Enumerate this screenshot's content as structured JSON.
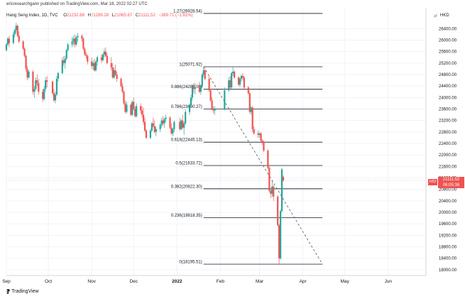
{
  "header": {
    "publisher_line": "ericresearchgann published on TradingView.com, Mar 18, 2022 02:27 UTC",
    "symbol": "Hang Seng Index, 1D, TVC",
    "ohlc": [
      {
        "k": "O",
        "v": "21232.88"
      },
      {
        "k": "H",
        "v": "21289.28"
      },
      {
        "k": "L",
        "v": "21065.87"
      },
      {
        "k": "C",
        "v": "21111.52"
      }
    ],
    "change": "−389.71 (−1.81%)",
    "currency": "HKD",
    "currency_icon": "⇄"
  },
  "badge": {
    "symbol_tag": "HSI",
    "price": "21111.52",
    "countdown": "06:05:36"
  },
  "footer": {
    "logo_mark": "⁋",
    "brand": "TradingView"
  },
  "colors": {
    "up": "#26a69a",
    "down": "#ef5350",
    "fib_line": "#131722",
    "grid": "#f0f3fa",
    "trendline": "#555555"
  },
  "chart_data": {
    "type": "candlestick",
    "title": "Hang Seng Index, 1D, TVC",
    "ylim": [
      17800,
      27100
    ],
    "y_ticks": [
      18000,
      18400,
      18800,
      19200,
      19600,
      20000,
      20400,
      20800,
      21200,
      21600,
      22000,
      22400,
      22800,
      23200,
      23600,
      24000,
      24400,
      24800,
      25200,
      25600,
      26000,
      26400
    ],
    "x_ticks": [
      "Sep",
      "Oct",
      "Nov",
      "Dec",
      "2022",
      "Feb",
      "Mar",
      "Apr",
      "May",
      "Jun"
    ],
    "x_tick_dates": [
      "2021-09-01",
      "2021-10-01",
      "2021-11-01",
      "2021-12-01",
      "2022-01-01",
      "2022-02-01",
      "2022-03-01",
      "2022-04-01",
      "2022-05-01",
      "2022-06-01"
    ],
    "fib_levels": [
      {
        "label": "1.27(26928.54)",
        "value": 26928.54
      },
      {
        "label": "1(25071.92)",
        "value": 25071.92
      },
      {
        "label": "0.886(24288.08)",
        "value": 24288.08
      },
      {
        "label": "0.786(23600.27)",
        "value": 23600.27
      },
      {
        "label": "0.618(22445.13)",
        "value": 22445.13
      },
      {
        "label": "0.5(21633.72)",
        "value": 21633.72
      },
      {
        "label": "0.382(20822.30)",
        "value": 20822.3
      },
      {
        "label": "0.236(19818.35)",
        "value": 19818.35
      },
      {
        "label": "0(18195.51)",
        "value": 18195.51
      }
    ],
    "fib_start_date": "2022-01-20",
    "fib_end_date": "2022-04-15",
    "trendline": {
      "start": {
        "date": "2022-01-20",
        "value": 25071.92
      },
      "end": {
        "date": "2022-04-15",
        "value": 18195.51
      }
    },
    "last_price": 21111.52,
    "candles": [
      {
        "d": "2021-09-01",
        "o": 25650,
        "h": 25900,
        "l": 25600,
        "c": 25850
      },
      {
        "d": "2021-09-02",
        "o": 25850,
        "h": 26100,
        "l": 25800,
        "c": 26050
      },
      {
        "d": "2021-09-03",
        "o": 26050,
        "h": 26150,
        "l": 25750,
        "c": 25900
      },
      {
        "d": "2021-09-06",
        "o": 25900,
        "h": 26300,
        "l": 25850,
        "c": 26200
      },
      {
        "d": "2021-09-07",
        "o": 26200,
        "h": 26400,
        "l": 26100,
        "c": 26350
      },
      {
        "d": "2021-09-08",
        "o": 26350,
        "h": 26600,
        "l": 26250,
        "c": 26500
      },
      {
        "d": "2021-09-09",
        "o": 26500,
        "h": 26550,
        "l": 26100,
        "c": 26150
      },
      {
        "d": "2021-09-10",
        "o": 26150,
        "h": 26300,
        "l": 25900,
        "c": 25950
      },
      {
        "d": "2021-09-13",
        "o": 25950,
        "h": 26000,
        "l": 25650,
        "c": 25700
      },
      {
        "d": "2021-09-14",
        "o": 25700,
        "h": 25750,
        "l": 25400,
        "c": 25450
      },
      {
        "d": "2021-09-15",
        "o": 25450,
        "h": 25500,
        "l": 24900,
        "c": 25000
      },
      {
        "d": "2021-09-16",
        "o": 25000,
        "h": 25100,
        "l": 24600,
        "c": 24700
      },
      {
        "d": "2021-09-17",
        "o": 24700,
        "h": 24950,
        "l": 24650,
        "c": 24900
      },
      {
        "d": "2021-09-20",
        "o": 24900,
        "h": 24950,
        "l": 24100,
        "c": 24200
      },
      {
        "d": "2021-09-21",
        "o": 24200,
        "h": 24400,
        "l": 24000,
        "c": 24300
      },
      {
        "d": "2021-09-22",
        "o": 24300,
        "h": 24700,
        "l": 24250,
        "c": 24600
      },
      {
        "d": "2021-09-23",
        "o": 24600,
        "h": 24800,
        "l": 24400,
        "c": 24500
      },
      {
        "d": "2021-09-24",
        "o": 24500,
        "h": 24650,
        "l": 24100,
        "c": 24200
      },
      {
        "d": "2021-09-27",
        "o": 24200,
        "h": 24300,
        "l": 23850,
        "c": 23950
      },
      {
        "d": "2021-09-28",
        "o": 23950,
        "h": 24400,
        "l": 23900,
        "c": 24300
      },
      {
        "d": "2021-09-29",
        "o": 24300,
        "h": 24700,
        "l": 24200,
        "c": 24600
      },
      {
        "d": "2021-09-30",
        "o": 24600,
        "h": 24750,
        "l": 24350,
        "c": 24550
      },
      {
        "d": "2021-10-04",
        "o": 24550,
        "h": 24600,
        "l": 24100,
        "c": 24150
      },
      {
        "d": "2021-10-05",
        "o": 24150,
        "h": 24300,
        "l": 23850,
        "c": 23900
      },
      {
        "d": "2021-10-06",
        "o": 23900,
        "h": 24200,
        "l": 23800,
        "c": 24100
      },
      {
        "d": "2021-10-07",
        "o": 24100,
        "h": 24750,
        "l": 24050,
        "c": 24650
      },
      {
        "d": "2021-10-08",
        "o": 24650,
        "h": 24900,
        "l": 24550,
        "c": 24850
      },
      {
        "d": "2021-10-11",
        "o": 24850,
        "h": 25400,
        "l": 24800,
        "c": 25300
      },
      {
        "d": "2021-10-12",
        "o": 25300,
        "h": 25450,
        "l": 25100,
        "c": 25200
      },
      {
        "d": "2021-10-13",
        "o": 25200,
        "h": 25450,
        "l": 25000,
        "c": 25350
      },
      {
        "d": "2021-10-14",
        "o": 25350,
        "h": 25700,
        "l": 25300,
        "c": 25650
      },
      {
        "d": "2021-10-15",
        "o": 25650,
        "h": 25900,
        "l": 25600,
        "c": 25850
      },
      {
        "d": "2021-10-18",
        "o": 25850,
        "h": 26100,
        "l": 25750,
        "c": 25950
      },
      {
        "d": "2021-10-19",
        "o": 25950,
        "h": 26150,
        "l": 25800,
        "c": 26050
      },
      {
        "d": "2021-10-20",
        "o": 26050,
        "h": 26200,
        "l": 25750,
        "c": 25850
      },
      {
        "d": "2021-10-21",
        "o": 25850,
        "h": 26150,
        "l": 25800,
        "c": 26100
      },
      {
        "d": "2021-10-22",
        "o": 26100,
        "h": 26250,
        "l": 25950,
        "c": 26150
      },
      {
        "d": "2021-10-25",
        "o": 26150,
        "h": 26200,
        "l": 25950,
        "c": 26050
      },
      {
        "d": "2021-10-26",
        "o": 26050,
        "h": 26100,
        "l": 25650,
        "c": 25700
      },
      {
        "d": "2021-10-27",
        "o": 25700,
        "h": 25750,
        "l": 25450,
        "c": 25500
      },
      {
        "d": "2021-10-28",
        "o": 25500,
        "h": 25600,
        "l": 25350,
        "c": 25450
      },
      {
        "d": "2021-10-29",
        "o": 25450,
        "h": 25500,
        "l": 25150,
        "c": 25250
      },
      {
        "d": "2021-11-01",
        "o": 25250,
        "h": 25400,
        "l": 25000,
        "c": 25100
      },
      {
        "d": "2021-11-02",
        "o": 25100,
        "h": 25300,
        "l": 24950,
        "c": 25200
      },
      {
        "d": "2021-11-03",
        "o": 25200,
        "h": 25350,
        "l": 24900,
        "c": 24950
      },
      {
        "d": "2021-11-04",
        "o": 24950,
        "h": 25300,
        "l": 24900,
        "c": 25250
      },
      {
        "d": "2021-11-05",
        "o": 25250,
        "h": 25450,
        "l": 25100,
        "c": 25400
      },
      {
        "d": "2021-11-08",
        "o": 25400,
        "h": 25500,
        "l": 25200,
        "c": 25300
      },
      {
        "d": "2021-11-09",
        "o": 25300,
        "h": 25550,
        "l": 25250,
        "c": 25500
      },
      {
        "d": "2021-11-10",
        "o": 25500,
        "h": 25700,
        "l": 25400,
        "c": 25600
      },
      {
        "d": "2021-11-11",
        "o": 25600,
        "h": 25750,
        "l": 25400,
        "c": 25450
      },
      {
        "d": "2021-11-12",
        "o": 25450,
        "h": 25550,
        "l": 25150,
        "c": 25200
      },
      {
        "d": "2021-11-15",
        "o": 25200,
        "h": 25400,
        "l": 24950,
        "c": 25050
      },
      {
        "d": "2021-11-16",
        "o": 25050,
        "h": 25200,
        "l": 24650,
        "c": 24700
      },
      {
        "d": "2021-11-17",
        "o": 24700,
        "h": 25050,
        "l": 24650,
        "c": 24950
      },
      {
        "d": "2021-11-18",
        "o": 24950,
        "h": 25150,
        "l": 24750,
        "c": 24800
      },
      {
        "d": "2021-11-19",
        "o": 24800,
        "h": 24900,
        "l": 24550,
        "c": 24650
      },
      {
        "d": "2021-11-22",
        "o": 24650,
        "h": 24700,
        "l": 24350,
        "c": 24400
      },
      {
        "d": "2021-11-23",
        "o": 24400,
        "h": 24500,
        "l": 24150,
        "c": 24200
      },
      {
        "d": "2021-11-24",
        "o": 24200,
        "h": 24250,
        "l": 23750,
        "c": 23800
      },
      {
        "d": "2021-11-25",
        "o": 23800,
        "h": 23900,
        "l": 23450,
        "c": 23500
      },
      {
        "d": "2021-11-26",
        "o": 23500,
        "h": 23850,
        "l": 23450,
        "c": 23750
      },
      {
        "d": "2021-11-29",
        "o": 23750,
        "h": 23800,
        "l": 23350,
        "c": 23400
      },
      {
        "d": "2021-11-30",
        "o": 23400,
        "h": 23900,
        "l": 23350,
        "c": 23850
      },
      {
        "d": "2021-12-01",
        "o": 23850,
        "h": 24000,
        "l": 23550,
        "c": 23600
      },
      {
        "d": "2021-12-02",
        "o": 23600,
        "h": 23700,
        "l": 23300,
        "c": 23350
      },
      {
        "d": "2021-12-03",
        "o": 23350,
        "h": 23800,
        "l": 23300,
        "c": 23700
      },
      {
        "d": "2021-12-06",
        "o": 23700,
        "h": 23800,
        "l": 23450,
        "c": 23550
      },
      {
        "d": "2021-12-07",
        "o": 23550,
        "h": 23700,
        "l": 23300,
        "c": 23400
      },
      {
        "d": "2021-12-08",
        "o": 23400,
        "h": 23650,
        "l": 23050,
        "c": 23150
      },
      {
        "d": "2021-12-09",
        "o": 23150,
        "h": 23300,
        "l": 22800,
        "c": 22850
      },
      {
        "d": "2021-12-10",
        "o": 22850,
        "h": 22900,
        "l": 22550,
        "c": 22600
      },
      {
        "d": "2021-12-13",
        "o": 22600,
        "h": 22900,
        "l": 22550,
        "c": 22850
      },
      {
        "d": "2021-12-14",
        "o": 22850,
        "h": 23150,
        "l": 22800,
        "c": 23100
      },
      {
        "d": "2021-12-15",
        "o": 23100,
        "h": 23300,
        "l": 22950,
        "c": 23000
      },
      {
        "d": "2021-12-16",
        "o": 23000,
        "h": 23200,
        "l": 22750,
        "c": 22800
      },
      {
        "d": "2021-12-17",
        "o": 22800,
        "h": 23000,
        "l": 22650,
        "c": 22900
      },
      {
        "d": "2021-12-20",
        "o": 22900,
        "h": 23100,
        "l": 22800,
        "c": 23050
      },
      {
        "d": "2021-12-21",
        "o": 23050,
        "h": 23300,
        "l": 22950,
        "c": 23200
      },
      {
        "d": "2021-12-22",
        "o": 23200,
        "h": 23350,
        "l": 23000,
        "c": 23100
      },
      {
        "d": "2021-12-23",
        "o": 23100,
        "h": 23300,
        "l": 22950,
        "c": 23250
      },
      {
        "d": "2021-12-24",
        "o": 23250,
        "h": 23400,
        "l": 23150,
        "c": 23300
      },
      {
        "d": "2021-12-27",
        "o": 23300,
        "h": 23350,
        "l": 22900,
        "c": 22950
      },
      {
        "d": "2021-12-28",
        "o": 22950,
        "h": 23100,
        "l": 22700,
        "c": 22750
      },
      {
        "d": "2021-12-29",
        "o": 22750,
        "h": 22950,
        "l": 22650,
        "c": 22900
      },
      {
        "d": "2021-12-30",
        "o": 22900,
        "h": 23200,
        "l": 22800,
        "c": 23150
      },
      {
        "d": "2022-01-03",
        "o": 23150,
        "h": 23300,
        "l": 22850,
        "c": 22900
      },
      {
        "d": "2022-01-04",
        "o": 22900,
        "h": 23250,
        "l": 22850,
        "c": 23200
      },
      {
        "d": "2022-01-05",
        "o": 23200,
        "h": 23400,
        "l": 22900,
        "c": 22950
      },
      {
        "d": "2022-01-06",
        "o": 22950,
        "h": 23150,
        "l": 22700,
        "c": 23100
      },
      {
        "d": "2022-01-07",
        "o": 23100,
        "h": 23600,
        "l": 23050,
        "c": 23500
      },
      {
        "d": "2022-01-10",
        "o": 23500,
        "h": 23800,
        "l": 23400,
        "c": 23750
      },
      {
        "d": "2022-01-11",
        "o": 23750,
        "h": 24100,
        "l": 23650,
        "c": 24000
      },
      {
        "d": "2022-01-12",
        "o": 24000,
        "h": 24450,
        "l": 23900,
        "c": 24400
      },
      {
        "d": "2022-01-13",
        "o": 24400,
        "h": 24500,
        "l": 24150,
        "c": 24300
      },
      {
        "d": "2022-01-14",
        "o": 24300,
        "h": 24500,
        "l": 24100,
        "c": 24350
      },
      {
        "d": "2022-01-17",
        "o": 24350,
        "h": 24550,
        "l": 24150,
        "c": 24200
      },
      {
        "d": "2022-01-18",
        "o": 24200,
        "h": 24450,
        "l": 24100,
        "c": 24400
      },
      {
        "d": "2022-01-19",
        "o": 24400,
        "h": 24850,
        "l": 24350,
        "c": 24800
      },
      {
        "d": "2022-01-20",
        "o": 24800,
        "h": 25070,
        "l": 24700,
        "c": 24950
      },
      {
        "d": "2022-01-21",
        "o": 24950,
        "h": 25000,
        "l": 24600,
        "c": 24650
      },
      {
        "d": "2022-01-24",
        "o": 24650,
        "h": 24750,
        "l": 24200,
        "c": 24250
      },
      {
        "d": "2022-01-25",
        "o": 24250,
        "h": 24300,
        "l": 23850,
        "c": 23900
      },
      {
        "d": "2022-01-26",
        "o": 23900,
        "h": 24000,
        "l": 23550,
        "c": 23600
      },
      {
        "d": "2022-01-27",
        "o": 23600,
        "h": 23700,
        "l": 23450,
        "c": 23550
      },
      {
        "d": "2022-01-28",
        "o": 23550,
        "h": 23700,
        "l": 23400,
        "c": 23600
      },
      {
        "d": "2022-02-04",
        "o": 23600,
        "h": 24350,
        "l": 23550,
        "c": 24250
      },
      {
        "d": "2022-02-07",
        "o": 24250,
        "h": 24700,
        "l": 24200,
        "c": 24600
      },
      {
        "d": "2022-02-08",
        "o": 24600,
        "h": 24750,
        "l": 24300,
        "c": 24350
      },
      {
        "d": "2022-02-09",
        "o": 24350,
        "h": 24900,
        "l": 24300,
        "c": 24850
      },
      {
        "d": "2022-02-10",
        "o": 24850,
        "h": 25050,
        "l": 24750,
        "c": 24900
      },
      {
        "d": "2022-02-11",
        "o": 24900,
        "h": 24950,
        "l": 24650,
        "c": 24700
      },
      {
        "d": "2022-02-14",
        "o": 24700,
        "h": 24750,
        "l": 24400,
        "c": 24450
      },
      {
        "d": "2022-02-15",
        "o": 24450,
        "h": 24700,
        "l": 24350,
        "c": 24650
      },
      {
        "d": "2022-02-16",
        "o": 24650,
        "h": 24800,
        "l": 24550,
        "c": 24750
      },
      {
        "d": "2022-02-17",
        "o": 24750,
        "h": 24850,
        "l": 24600,
        "c": 24700
      },
      {
        "d": "2022-02-18",
        "o": 24700,
        "h": 24750,
        "l": 24300,
        "c": 24350
      },
      {
        "d": "2022-02-21",
        "o": 24350,
        "h": 24400,
        "l": 24100,
        "c": 24150
      },
      {
        "d": "2022-02-22",
        "o": 24150,
        "h": 24200,
        "l": 23450,
        "c": 23500
      },
      {
        "d": "2022-02-23",
        "o": 23500,
        "h": 23700,
        "l": 23400,
        "c": 23650
      },
      {
        "d": "2022-02-24",
        "o": 23650,
        "h": 23700,
        "l": 22800,
        "c": 22900
      },
      {
        "d": "2022-02-25",
        "o": 22900,
        "h": 23000,
        "l": 22700,
        "c": 22750
      },
      {
        "d": "2022-02-28",
        "o": 22750,
        "h": 22850,
        "l": 22600,
        "c": 22700
      },
      {
        "d": "2022-03-01",
        "o": 22700,
        "h": 22800,
        "l": 22600,
        "c": 22750
      },
      {
        "d": "2022-03-02",
        "o": 22750,
        "h": 22800,
        "l": 22450,
        "c": 22500
      },
      {
        "d": "2022-03-03",
        "o": 22500,
        "h": 22550,
        "l": 22350,
        "c": 22450
      },
      {
        "d": "2022-03-04",
        "o": 22450,
        "h": 22500,
        "l": 22100,
        "c": 22150
      },
      {
        "d": "2022-03-07",
        "o": 22150,
        "h": 22200,
        "l": 21500,
        "c": 21550
      },
      {
        "d": "2022-03-08",
        "o": 21550,
        "h": 21600,
        "l": 20700,
        "c": 20750
      },
      {
        "d": "2022-03-09",
        "o": 20750,
        "h": 20850,
        "l": 20500,
        "c": 20650
      },
      {
        "d": "2022-03-10",
        "o": 20650,
        "h": 21100,
        "l": 20550,
        "c": 20900
      },
      {
        "d": "2022-03-11",
        "o": 20900,
        "h": 20950,
        "l": 20400,
        "c": 20550
      },
      {
        "d": "2022-03-14",
        "o": 20550,
        "h": 20600,
        "l": 19500,
        "c": 19550
      },
      {
        "d": "2022-03-15",
        "o": 19550,
        "h": 19600,
        "l": 18200,
        "c": 18400
      },
      {
        "d": "2022-03-16",
        "o": 18400,
        "h": 20100,
        "l": 18350,
        "c": 20050
      },
      {
        "d": "2022-03-17",
        "o": 20050,
        "h": 21550,
        "l": 20000,
        "c": 21500
      },
      {
        "d": "2022-03-18",
        "o": 21232.88,
        "h": 21289.28,
        "l": 21065.87,
        "c": 21111.52
      }
    ]
  }
}
